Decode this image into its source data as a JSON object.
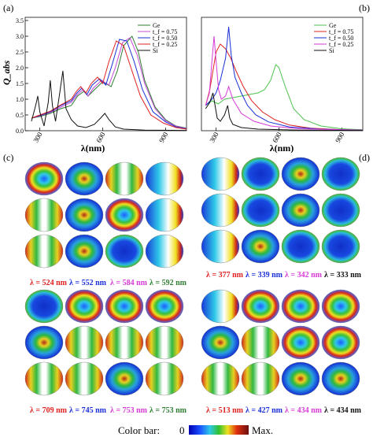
{
  "panel_labels": {
    "a": "(a)",
    "b": "(b)",
    "c": "(c)",
    "d": "(d)"
  },
  "chart_data": [
    {
      "type": "line",
      "panel": "(a)",
      "ylabel": "Q_abs",
      "xlabel": "λ(nm)",
      "xlim": [
        230,
        1000
      ],
      "ylim": [
        0,
        3.6
      ],
      "x_ticks": [
        300,
        600,
        900
      ],
      "y_ticks": [
        0.0,
        0.5,
        1.0,
        1.5,
        2.0,
        2.5,
        3.0,
        3.5
      ],
      "legend_position": "top-right",
      "series": [
        {
          "name": "Ge",
          "color": "#2e7d32",
          "points": [
            [
              260,
              0.4
            ],
            [
              300,
              0.45
            ],
            [
              350,
              0.55
            ],
            [
              400,
              0.7
            ],
            [
              450,
              0.8
            ],
            [
              480,
              1.1
            ],
            [
              510,
              1.25
            ],
            [
              530,
              1.1
            ],
            [
              560,
              1.3
            ],
            [
              600,
              1.55
            ],
            [
              640,
              1.4
            ],
            [
              670,
              1.9
            ],
            [
              700,
              2.7
            ],
            [
              740,
              3.0
            ],
            [
              770,
              2.5
            ],
            [
              800,
              1.6
            ],
            [
              850,
              0.75
            ],
            [
              900,
              0.35
            ],
            [
              950,
              0.15
            ],
            [
              1000,
              0.08
            ]
          ]
        },
        {
          "name": "t_f = 0.75",
          "color": "#c34bd6",
          "points": [
            [
              260,
              0.4
            ],
            [
              300,
              0.47
            ],
            [
              350,
              0.58
            ],
            [
              400,
              0.75
            ],
            [
              450,
              0.9
            ],
            [
              480,
              1.15
            ],
            [
              505,
              1.3
            ],
            [
              530,
              1.1
            ],
            [
              555,
              1.35
            ],
            [
              595,
              1.6
            ],
            [
              630,
              1.45
            ],
            [
              660,
              2.0
            ],
            [
              695,
              2.8
            ],
            [
              730,
              2.95
            ],
            [
              765,
              2.4
            ],
            [
              800,
              1.5
            ],
            [
              850,
              0.7
            ],
            [
              900,
              0.32
            ],
            [
              950,
              0.14
            ],
            [
              1000,
              0.07
            ]
          ]
        },
        {
          "name": "t_f = 0.50",
          "color": "#1a2fd6",
          "points": [
            [
              260,
              0.4
            ],
            [
              300,
              0.48
            ],
            [
              350,
              0.6
            ],
            [
              400,
              0.8
            ],
            [
              450,
              0.95
            ],
            [
              478,
              1.2
            ],
            [
              500,
              1.35
            ],
            [
              525,
              1.15
            ],
            [
              550,
              1.45
            ],
            [
              585,
              1.65
            ],
            [
              615,
              1.45
            ],
            [
              645,
              2.1
            ],
            [
              680,
              2.9
            ],
            [
              715,
              2.85
            ],
            [
              750,
              2.2
            ],
            [
              790,
              1.3
            ],
            [
              840,
              0.6
            ],
            [
              900,
              0.28
            ],
            [
              950,
              0.12
            ],
            [
              1000,
              0.06
            ]
          ]
        },
        {
          "name": "t_f = 0.25",
          "color": "#e02020",
          "points": [
            [
              260,
              0.4
            ],
            [
              300,
              0.5
            ],
            [
              350,
              0.62
            ],
            [
              400,
              0.82
            ],
            [
              450,
              1.0
            ],
            [
              475,
              1.25
            ],
            [
              495,
              1.4
            ],
            [
              520,
              1.2
            ],
            [
              545,
              1.5
            ],
            [
              575,
              1.7
            ],
            [
              600,
              1.5
            ],
            [
              630,
              2.2
            ],
            [
              665,
              2.85
            ],
            [
              700,
              2.7
            ],
            [
              735,
              2.0
            ],
            [
              780,
              1.1
            ],
            [
              830,
              0.5
            ],
            [
              890,
              0.24
            ],
            [
              950,
              0.1
            ],
            [
              1000,
              0.05
            ]
          ]
        },
        {
          "name": "Si",
          "color": "#111111",
          "points": [
            [
              260,
              0.3
            ],
            [
              280,
              0.8
            ],
            [
              290,
              1.1
            ],
            [
              300,
              0.6
            ],
            [
              320,
              0.15
            ],
            [
              340,
              0.9
            ],
            [
              350,
              1.6
            ],
            [
              360,
              0.8
            ],
            [
              375,
              0.3
            ],
            [
              395,
              1.2
            ],
            [
              410,
              1.9
            ],
            [
              425,
              0.7
            ],
            [
              450,
              0.35
            ],
            [
              480,
              0.15
            ],
            [
              520,
              0.1
            ],
            [
              560,
              0.2
            ],
            [
              590,
              0.4
            ],
            [
              610,
              0.55
            ],
            [
              630,
              0.35
            ],
            [
              660,
              0.12
            ],
            [
              700,
              0.05
            ],
            [
              800,
              0.02
            ],
            [
              1000,
              0.01
            ]
          ]
        }
      ]
    },
    {
      "type": "line",
      "panel": "(b)",
      "xlabel": "λ(nm)",
      "xlim": [
        230,
        1000
      ],
      "ylim": [
        0,
        3.6
      ],
      "x_ticks": [
        300,
        600,
        900
      ],
      "legend_position": "top-right",
      "series": [
        {
          "name": "Ge",
          "color": "#4cc24c",
          "points": [
            [
              250,
              0.8
            ],
            [
              280,
              0.95
            ],
            [
              310,
              0.85
            ],
            [
              340,
              1.0
            ],
            [
              380,
              1.05
            ],
            [
              420,
              1.1
            ],
            [
              460,
              1.15
            ],
            [
              500,
              1.2
            ],
            [
              530,
              1.3
            ],
            [
              560,
              1.6
            ],
            [
              585,
              2.1
            ],
            [
              600,
              2.0
            ],
            [
              630,
              1.4
            ],
            [
              670,
              0.7
            ],
            [
              720,
              0.35
            ],
            [
              800,
              0.15
            ],
            [
              900,
              0.06
            ],
            [
              1000,
              0.03
            ]
          ]
        },
        {
          "name": "t_f = 0.75",
          "color": "#e02020",
          "points": [
            [
              250,
              0.8
            ],
            [
              270,
              1.3
            ],
            [
              285,
              1.9
            ],
            [
              300,
              2.5
            ],
            [
              320,
              2.75
            ],
            [
              345,
              2.6
            ],
            [
              370,
              2.3
            ],
            [
              395,
              1.9
            ],
            [
              430,
              1.4
            ],
            [
              470,
              0.95
            ],
            [
              520,
              0.6
            ],
            [
              580,
              0.35
            ],
            [
              650,
              0.18
            ],
            [
              750,
              0.08
            ],
            [
              900,
              0.03
            ],
            [
              1000,
              0.02
            ]
          ]
        },
        {
          "name": "t_f = 0.50",
          "color": "#1a2fd6",
          "points": [
            [
              250,
              0.8
            ],
            [
              280,
              1.0
            ],
            [
              300,
              1.2
            ],
            [
              320,
              1.6
            ],
            [
              345,
              2.3
            ],
            [
              360,
              3.3
            ],
            [
              372,
              2.4
            ],
            [
              390,
              1.7
            ],
            [
              420,
              1.2
            ],
            [
              450,
              0.8
            ],
            [
              490,
              0.5
            ],
            [
              550,
              0.28
            ],
            [
              650,
              0.12
            ],
            [
              800,
              0.05
            ],
            [
              1000,
              0.02
            ]
          ]
        },
        {
          "name": "t_f = 0.25",
          "color": "#d63ad6",
          "points": [
            [
              250,
              0.8
            ],
            [
              268,
              1.2
            ],
            [
              280,
              2.2
            ],
            [
              290,
              3.0
            ],
            [
              300,
              2.2
            ],
            [
              312,
              1.3
            ],
            [
              325,
              1.0
            ],
            [
              345,
              1.1
            ],
            [
              360,
              1.4
            ],
            [
              380,
              1.0
            ],
            [
              420,
              0.55
            ],
            [
              480,
              0.3
            ],
            [
              560,
              0.15
            ],
            [
              700,
              0.06
            ],
            [
              1000,
              0.02
            ]
          ]
        },
        {
          "name": "Si",
          "color": "#111111",
          "points": [
            [
              250,
              0.7
            ],
            [
              270,
              0.9
            ],
            [
              285,
              1.2
            ],
            [
              295,
              0.8
            ],
            [
              305,
              0.4
            ],
            [
              320,
              0.3
            ],
            [
              340,
              0.5
            ],
            [
              355,
              0.8
            ],
            [
              365,
              0.4
            ],
            [
              380,
              0.2
            ],
            [
              420,
              0.1
            ],
            [
              500,
              0.05
            ],
            [
              700,
              0.02
            ],
            [
              1000,
              0.01
            ]
          ]
        }
      ]
    }
  ],
  "field_maps": {
    "c": {
      "top_labels": [
        "λ = 524 nm",
        "λ = 552 nm",
        "λ = 584 nm",
        "λ = 592 nm"
      ],
      "top_label_colors": [
        "#e02020",
        "#1a2fd6",
        "#d63ad6",
        "#2e7d32"
      ],
      "bottom_labels": [
        "λ = 709 nm",
        "λ = 745 nm",
        "λ = 753 nm",
        "λ = 753 nm"
      ],
      "bottom_label_colors": [
        "#e02020",
        "#1a2fd6",
        "#d63ad6",
        "#2e7d32"
      ]
    },
    "d": {
      "top_labels": [
        "λ = 377 nm",
        "λ = 339 nm",
        "λ = 342 nm",
        "λ = 333 nm"
      ],
      "top_label_colors": [
        "#e02020",
        "#1a2fd6",
        "#d63ad6",
        "#111111"
      ],
      "bottom_labels": [
        "λ = 513 nm",
        "λ = 427 nm",
        "λ = 434 nm",
        "λ = 434 nm"
      ],
      "bottom_label_colors": [
        "#e02020",
        "#1a2fd6",
        "#d63ad6",
        "#111111"
      ]
    }
  },
  "color_bar": {
    "label": "Color bar:",
    "min": "0",
    "max": "Max."
  }
}
